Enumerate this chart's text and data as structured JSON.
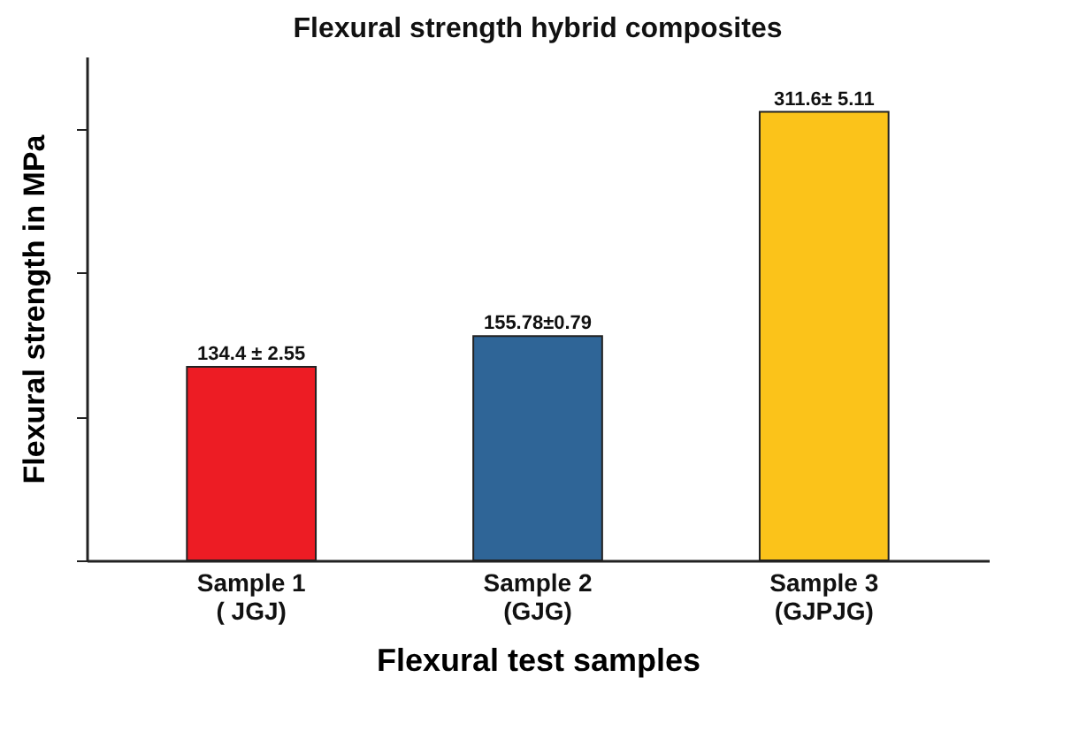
{
  "chart_data": {
    "type": "bar",
    "title": "Flexural strength hybrid composites",
    "xlabel": "Flexural test samples",
    "ylabel": "Flexural strength in MPa",
    "categories": [
      "Sample 1\n( JGJ)",
      "Sample 2\n(GJG)",
      "Sample 3\n(GJPJG)"
    ],
    "values": [
      134.4,
      155.78,
      311.6
    ],
    "colors": [
      "#ed1c24",
      "#2f6597",
      "#fbc31a"
    ],
    "value_labels": [
      "134.4 ± 2.55",
      "155.78±0.79",
      "311.6± 5.11"
    ],
    "tick_labels": "x"
  }
}
